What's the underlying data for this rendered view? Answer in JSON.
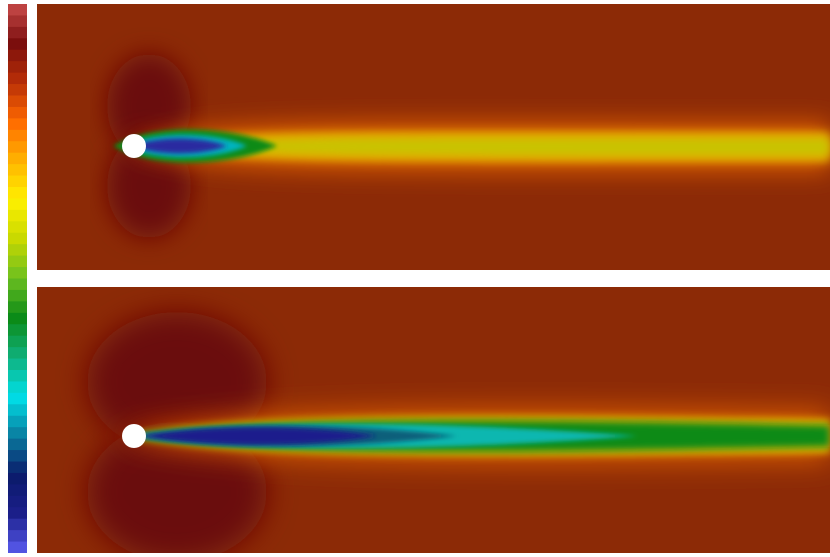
{
  "figure": {
    "colormap": {
      "name": "rainbow-banded",
      "stops_top_to_bottom": [
        "#c94b4a",
        "#7a0d0d",
        "#b82f07",
        "#ff6a00",
        "#ffb300",
        "#fff000",
        "#c8d800",
        "#6bbf20",
        "#0b8a16",
        "#10b07a",
        "#00e0e8",
        "#0a7fa0",
        "#0a1a6a",
        "#1b1f8a",
        "#5a5cf0"
      ],
      "band_count": 48
    },
    "panels": [
      {
        "id": "top",
        "background_color": "#8c2a06",
        "wake_length": "short",
        "wake_core_color": "#2b2aa0",
        "far_wake_color": "#c8c400",
        "obstacle_color": "#ffffff"
      },
      {
        "id": "bottom",
        "background_color": "#8c2a06",
        "wake_length": "long",
        "wake_core_color": "#1c1e8c",
        "far_wake_color": "#0b8a16",
        "obstacle_color": "#ffffff"
      }
    ]
  }
}
